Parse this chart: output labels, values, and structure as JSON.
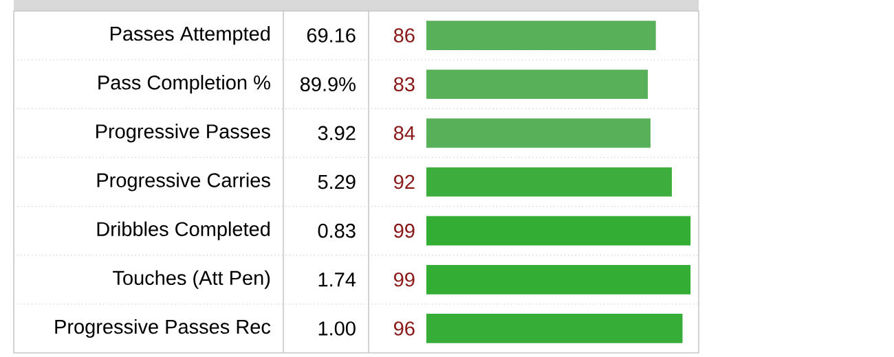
{
  "chart_data": {
    "type": "bar",
    "orientation": "horizontal",
    "categories": [
      "Passes Attempted",
      "Pass Completion %",
      "Progressive Passes",
      "Progressive Carries",
      "Dribbles Completed",
      "Touches (Att Pen)",
      "Progressive Passes Rec"
    ],
    "values": [
      86,
      83,
      84,
      92,
      99,
      99,
      96
    ],
    "colors": [
      "#58b158",
      "#58b158",
      "#58b158",
      "#3dae3d",
      "#33ad33",
      "#33ad33",
      "#36ad36"
    ],
    "xlim": [
      0,
      100
    ],
    "data_labels": true,
    "annotations": [
      "69.16",
      "89.9%",
      "3.92",
      "5.29",
      "0.83",
      "1.74",
      "1.00"
    ]
  }
}
